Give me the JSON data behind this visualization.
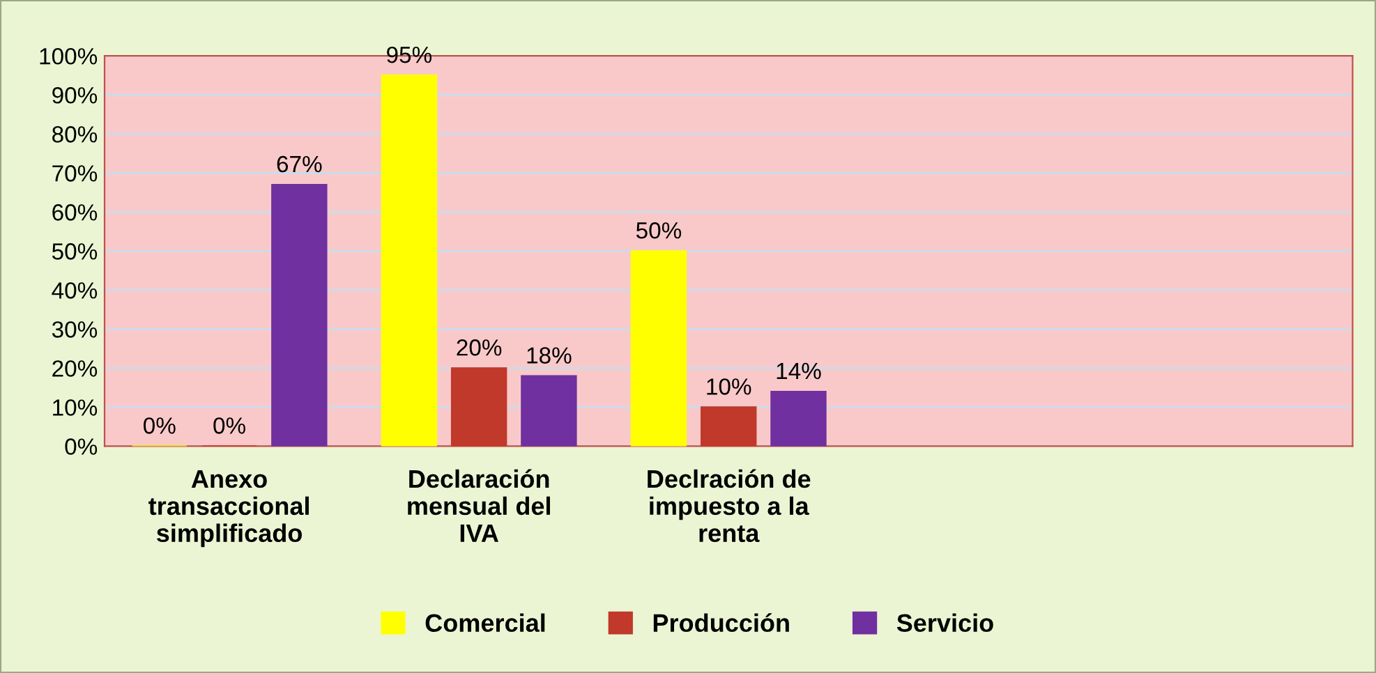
{
  "chart_data": {
    "type": "bar",
    "categories": [
      "Anexo transaccional simplificado",
      "Declaración mensual del IVA",
      "Declración de impuesto a la renta",
      null,
      null
    ],
    "series": [
      {
        "name": "Comercial",
        "color": "#ffff00",
        "values": [
          0,
          95,
          50,
          null,
          null
        ],
        "value_labels": [
          "0%",
          "95%",
          "50%",
          null,
          null
        ]
      },
      {
        "name": "Producción",
        "color": "#c0392b",
        "values": [
          0,
          20,
          10,
          null,
          null
        ],
        "value_labels": [
          "0%",
          "20%",
          "10%",
          null,
          null
        ]
      },
      {
        "name": "Servicio",
        "color": "#7030a0",
        "values": [
          67,
          18,
          14,
          null,
          null
        ],
        "value_labels": [
          "67%",
          "18%",
          "14%",
          null,
          null
        ]
      }
    ],
    "ylim": [
      0,
      100
    ],
    "yticks": [
      {
        "value": 0,
        "label": "0%"
      },
      {
        "value": 10,
        "label": "10%"
      },
      {
        "value": 20,
        "label": "20%"
      },
      {
        "value": 30,
        "label": "30%"
      },
      {
        "value": 40,
        "label": "40%"
      },
      {
        "value": 50,
        "label": "50%"
      },
      {
        "value": 60,
        "label": "60%"
      },
      {
        "value": 70,
        "label": "70%"
      },
      {
        "value": 80,
        "label": "80%"
      },
      {
        "value": 90,
        "label": "90%"
      },
      {
        "value": 100,
        "label": "100%"
      }
    ],
    "grid": "y",
    "legend": "bottom"
  }
}
